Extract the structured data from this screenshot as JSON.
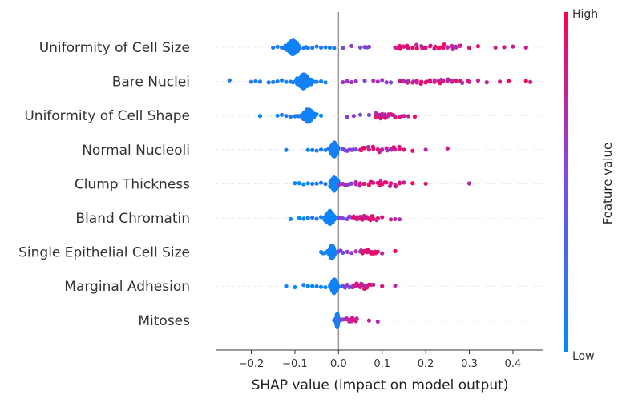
{
  "chart_data": {
    "type": "scatter",
    "subtype": "shap-beeswarm",
    "xlabel": "SHAP value (impact on model output)",
    "xlim": [
      -0.28,
      0.47
    ],
    "xticks": [
      -0.2,
      -0.1,
      0.0,
      0.1,
      0.2,
      0.3,
      0.4
    ],
    "xtick_labels": [
      "−0.2",
      "−0.1",
      "0.0",
      "0.1",
      "0.2",
      "0.3",
      "0.4"
    ],
    "colorbar": {
      "label": "Feature value",
      "high_label": "High",
      "low_label": "Low",
      "high_color": "#ff0052",
      "low_color": "#008bfb"
    },
    "features": [
      {
        "name": "Uniformity of Cell Size",
        "low_cluster": {
          "center": -0.105,
          "spread": 0.012,
          "count": 150
        },
        "low_points": [
          -0.15,
          -0.14,
          -0.13,
          -0.125,
          -0.12,
          -0.08,
          -0.075,
          -0.07,
          -0.06,
          -0.05,
          -0.04,
          -0.03,
          -0.02,
          -0.01
        ],
        "mid_points": [
          0.01,
          0.03,
          0.05,
          0.06,
          0.065,
          0.07
        ],
        "high_points": [
          0.13,
          0.14,
          0.15,
          0.16,
          0.17,
          0.18,
          0.19,
          0.2,
          0.21,
          0.22,
          0.23,
          0.24,
          0.25,
          0.26,
          0.27,
          0.28,
          0.3,
          0.32,
          0.36,
          0.38,
          0.4,
          0.43
        ]
      },
      {
        "name": "Bare Nuclei",
        "low_cluster": {
          "center": -0.08,
          "spread": 0.014,
          "count": 160
        },
        "low_points": [
          -0.25,
          -0.2,
          -0.19,
          -0.18,
          -0.16,
          -0.15,
          -0.14,
          -0.13,
          -0.12,
          -0.11,
          -0.05,
          -0.04,
          -0.03
        ],
        "mid_points": [
          0.01,
          0.02,
          0.03,
          0.04,
          0.06,
          0.08,
          0.09,
          0.1,
          0.11,
          0.12
        ],
        "high_points": [
          0.14,
          0.15,
          0.16,
          0.17,
          0.18,
          0.19,
          0.2,
          0.21,
          0.22,
          0.23,
          0.24,
          0.25,
          0.26,
          0.27,
          0.28,
          0.3,
          0.32,
          0.34,
          0.37,
          0.39,
          0.43,
          0.44
        ]
      },
      {
        "name": "Uniformity of Cell Shape",
        "low_cluster": {
          "center": -0.07,
          "spread": 0.01,
          "count": 150
        },
        "low_points": [
          -0.18,
          -0.14,
          -0.13,
          -0.12,
          -0.11,
          -0.1,
          -0.09,
          -0.05,
          -0.04
        ],
        "mid_points": [
          0.02,
          0.035,
          0.05,
          0.07
        ],
        "high_points": [
          0.085,
          0.09,
          0.095,
          0.1,
          0.105,
          0.11,
          0.115,
          0.12,
          0.13,
          0.14,
          0.15,
          0.16,
          0.175
        ]
      },
      {
        "name": "Normal Nucleoli",
        "low_cluster": {
          "center": -0.01,
          "spread": 0.007,
          "count": 150
        },
        "low_points": [
          -0.12,
          -0.07,
          -0.06,
          -0.05,
          -0.04,
          -0.03
        ],
        "mid_points": [
          0.01,
          0.015,
          0.02,
          0.025,
          0.03,
          0.035,
          0.04
        ],
        "high_points": [
          0.05,
          0.06,
          0.07,
          0.08,
          0.09,
          0.1,
          0.11,
          0.12,
          0.13,
          0.14,
          0.15,
          0.17,
          0.2,
          0.25
        ]
      },
      {
        "name": "Clump Thickness",
        "low_cluster": {
          "center": -0.01,
          "spread": 0.007,
          "count": 140
        },
        "low_points": [
          -0.1,
          -0.09,
          -0.08,
          -0.07,
          -0.06,
          -0.05,
          -0.04,
          -0.03
        ],
        "mid_points": [
          0.0,
          0.005,
          0.01,
          0.015,
          0.02,
          0.025,
          0.03
        ],
        "high_points": [
          0.04,
          0.05,
          0.06,
          0.07,
          0.08,
          0.09,
          0.1,
          0.11,
          0.12,
          0.13,
          0.14,
          0.15,
          0.17,
          0.2,
          0.3
        ]
      },
      {
        "name": "Bland Chromatin",
        "low_cluster": {
          "center": -0.02,
          "spread": 0.008,
          "count": 150
        },
        "low_points": [
          -0.11,
          -0.09,
          -0.08,
          -0.07,
          -0.06,
          -0.05,
          -0.04
        ],
        "mid_points": [
          0.0,
          0.005,
          0.01,
          0.02,
          0.025,
          0.03
        ],
        "high_points": [
          0.035,
          0.04,
          0.045,
          0.05,
          0.055,
          0.06,
          0.065,
          0.07,
          0.08,
          0.09,
          0.1,
          0.12,
          0.13,
          0.14
        ]
      },
      {
        "name": "Single Epithelial Cell Size",
        "low_cluster": {
          "center": -0.015,
          "spread": 0.005,
          "count": 150
        },
        "low_points": [
          -0.04,
          -0.035,
          -0.03,
          -0.025
        ],
        "mid_points": [
          0.0,
          0.005,
          0.01,
          0.02,
          0.03,
          0.04,
          0.05
        ],
        "high_points": [
          0.055,
          0.06,
          0.065,
          0.07,
          0.075,
          0.08,
          0.085,
          0.09,
          0.1,
          0.13
        ]
      },
      {
        "name": "Marginal Adhesion",
        "low_cluster": {
          "center": -0.01,
          "spread": 0.006,
          "count": 150
        },
        "low_points": [
          -0.12,
          -0.1,
          -0.08,
          -0.07,
          -0.06,
          -0.05,
          -0.04,
          -0.03
        ],
        "mid_points": [
          0.01,
          0.015,
          0.02,
          0.025,
          0.03
        ],
        "high_points": [
          0.035,
          0.04,
          0.045,
          0.05,
          0.055,
          0.06,
          0.065,
          0.07,
          0.08,
          0.1,
          0.13
        ]
      },
      {
        "name": "Mitoses",
        "low_cluster": {
          "center": -0.003,
          "spread": 0.002,
          "count": 120
        },
        "low_points": [
          -0.01,
          -0.008
        ],
        "mid_points": [
          0.005,
          0.01,
          0.015
        ],
        "high_points": [
          0.02,
          0.025,
          0.03,
          0.035,
          0.04,
          0.07,
          0.09
        ]
      }
    ]
  }
}
